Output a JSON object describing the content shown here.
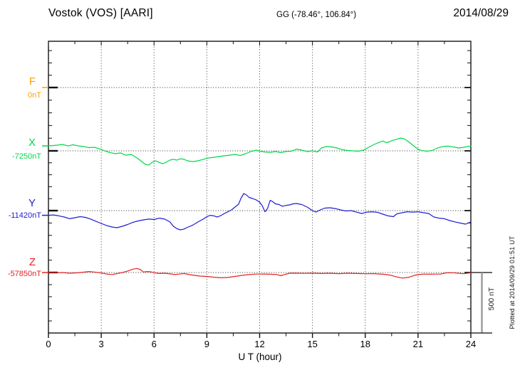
{
  "header": {
    "station": "Vostok (VOS)  [AARI]",
    "coords": "GG (-78.46°, 106.84°)",
    "date": "2014/08/29"
  },
  "side_note": "Plotted at 2014/09/29 01:51 UT",
  "scale_bar": {
    "label": "500 nT",
    "nT": 500
  },
  "xaxis": {
    "label": "U T (hour)",
    "ticks": [
      "0",
      "3",
      "6",
      "9",
      "12",
      "15",
      "18",
      "21",
      "24"
    ]
  },
  "components": [
    {
      "id": "F",
      "label": "F",
      "value_label": "0nT",
      "color": "#FFA000"
    },
    {
      "id": "X",
      "label": "X",
      "value_label": "-7250nT",
      "color": "#00D84A"
    },
    {
      "id": "Y",
      "label": "Y",
      "value_label": "-11420nT",
      "color": "#1D1DD2"
    },
    {
      "id": "Z",
      "label": "Z",
      "value_label": "-57850nT",
      "color": "#E42222"
    }
  ],
  "chart_data": {
    "type": "line",
    "title": "Vostok (VOS) [AARI] magnetogram, 2014/08/29",
    "xlabel": "U T (hour)",
    "xlim": [
      0,
      24
    ],
    "x_tick_step_hours": 3,
    "x_minor_tick_hours": 1.5,
    "y_division_nT": 500,
    "grid": "dotted",
    "legend_position": "left",
    "series": [
      {
        "name": "F",
        "baseline_nT": 0,
        "x": [
          0
        ],
        "dev_nT": [
          0
        ]
      },
      {
        "name": "X",
        "baseline_nT": -7250,
        "x": [
          0,
          0.5,
          0.8,
          1.1,
          1.4,
          1.7,
          2.0,
          2.3,
          2.6,
          2.9,
          3.2,
          3.5,
          3.8,
          4.1,
          4.4,
          4.7,
          4.9,
          5.1,
          5.3,
          5.5,
          5.7,
          5.9,
          6.1,
          6.3,
          6.5,
          6.7,
          6.9,
          7.1,
          7.3,
          7.5,
          7.7,
          7.9,
          8.2,
          8.5,
          8.8,
          9.1,
          9.4,
          9.7,
          10.0,
          10.3,
          10.6,
          10.9,
          11.2,
          11.5,
          11.8,
          12.0,
          12.3,
          12.6,
          12.9,
          13.2,
          13.5,
          13.8,
          14.1,
          14.4,
          14.7,
          15.0,
          15.3,
          15.5,
          15.8,
          16.1,
          16.4,
          16.7,
          17.0,
          17.3,
          17.6,
          17.9,
          18.2,
          18.5,
          18.8,
          19.0,
          19.2,
          19.4,
          19.6,
          19.8,
          20.0,
          20.2,
          20.4,
          20.6,
          20.8,
          21.0,
          21.2,
          21.5,
          21.8,
          22.1,
          22.4,
          22.7,
          23.0,
          23.3,
          23.6,
          23.8,
          24.0
        ],
        "dev_nT": [
          40,
          46,
          52,
          40,
          49,
          40,
          35,
          26,
          29,
          17,
          0,
          -14,
          -23,
          -17,
          -35,
          -29,
          -46,
          -64,
          -87,
          -110,
          -116,
          -92,
          -81,
          -95,
          -104,
          -92,
          -75,
          -69,
          -75,
          -64,
          -69,
          -81,
          -87,
          -81,
          -69,
          -58,
          -52,
          -46,
          -40,
          -35,
          -29,
          -38,
          -23,
          -6,
          6,
          -3,
          -9,
          -12,
          -6,
          -14,
          -6,
          -3,
          14,
          6,
          -6,
          0,
          -9,
          23,
          35,
          32,
          23,
          9,
          3,
          0,
          -3,
          6,
          29,
          52,
          69,
          81,
          66,
          75,
          87,
          95,
          104,
          98,
          81,
          58,
          35,
          14,
          3,
          -3,
          3,
          23,
          35,
          38,
          32,
          23,
          29,
          35,
          38
        ]
      },
      {
        "name": "Y",
        "baseline_nT": -11420,
        "x": [
          0,
          0.3,
          0.6,
          0.9,
          1.2,
          1.5,
          1.8,
          2.1,
          2.4,
          2.7,
          3.0,
          3.3,
          3.6,
          3.9,
          4.2,
          4.5,
          4.8,
          5.1,
          5.4,
          5.7,
          6.0,
          6.3,
          6.6,
          6.9,
          7.1,
          7.3,
          7.5,
          7.7,
          7.9,
          8.2,
          8.5,
          8.8,
          9.0,
          9.2,
          9.4,
          9.6,
          9.8,
          10.0,
          10.2,
          10.4,
          10.6,
          10.8,
          10.95,
          11.1,
          11.25,
          11.4,
          11.6,
          11.8,
          12.0,
          12.15,
          12.3,
          12.45,
          12.6,
          12.75,
          12.9,
          13.1,
          13.3,
          13.5,
          13.7,
          13.9,
          14.1,
          14.4,
          14.7,
          15.0,
          15.2,
          15.4,
          15.7,
          16.0,
          16.3,
          16.6,
          16.9,
          17.2,
          17.5,
          17.8,
          18.1,
          18.4,
          18.7,
          19.0,
          19.3,
          19.6,
          19.8,
          20.1,
          20.4,
          20.7,
          21.0,
          21.3,
          21.6,
          21.9,
          22.2,
          22.5,
          22.8,
          23.1,
          23.4,
          23.7,
          23.9,
          24.0
        ],
        "dev_nT": [
          -38,
          -35,
          -43,
          -52,
          -66,
          -58,
          -49,
          -55,
          -69,
          -87,
          -104,
          -121,
          -133,
          -139,
          -127,
          -113,
          -95,
          -84,
          -75,
          -69,
          -72,
          -61,
          -69,
          -92,
          -127,
          -147,
          -156,
          -150,
          -136,
          -118,
          -92,
          -69,
          -49,
          -38,
          -43,
          -52,
          -40,
          -23,
          -9,
          6,
          29,
          52,
          104,
          139,
          127,
          107,
          98,
          87,
          69,
          40,
          -9,
          17,
          84,
          72,
          55,
          49,
          35,
          43,
          46,
          55,
          58,
          49,
          29,
          0,
          -12,
          3,
          20,
          23,
          17,
          6,
          -3,
          0,
          -12,
          -23,
          -12,
          -9,
          -14,
          -29,
          -43,
          -49,
          -26,
          -17,
          -9,
          -12,
          -9,
          -17,
          -23,
          -52,
          -61,
          -66,
          -81,
          -92,
          -101,
          -110,
          -98,
          -90
        ]
      },
      {
        "name": "Z",
        "baseline_nT": -57850,
        "x": [
          0,
          0.4,
          0.8,
          1.2,
          1.6,
          2.0,
          2.3,
          2.6,
          3.0,
          3.3,
          3.6,
          3.9,
          4.2,
          4.5,
          4.8,
          5.0,
          5.2,
          5.4,
          5.6,
          5.8,
          6.0,
          6.3,
          6.6,
          7.0,
          7.2,
          7.4,
          7.7,
          8.0,
          8.3,
          8.6,
          9.0,
          9.4,
          9.8,
          10.2,
          10.6,
          11.0,
          11.4,
          11.8,
          12.2,
          12.6,
          13.0,
          13.2,
          13.4,
          13.7,
          14.0,
          14.5,
          15.0,
          15.5,
          16.0,
          16.5,
          17.0,
          17.5,
          18.0,
          18.5,
          19.0,
          19.4,
          19.8,
          20.1,
          20.45,
          20.85,
          21.3,
          21.7,
          22.0,
          22.3,
          22.6,
          23.0,
          23.3,
          23.6,
          24.0
        ],
        "dev_nT": [
          0,
          -3,
          0,
          -6,
          -3,
          3,
          8,
          4,
          -3,
          -12,
          -16,
          -9,
          0,
          12,
          27,
          33,
          26,
          4,
          8,
          6,
          -2,
          -8,
          -6,
          -12,
          -17,
          -13,
          -8,
          -17,
          -23,
          -29,
          -32,
          -38,
          -43,
          -40,
          -32,
          -23,
          -17,
          -13,
          -12,
          -14,
          -17,
          -26,
          -17,
          -6,
          -5,
          -7,
          -5,
          -8,
          -6,
          -9,
          -6,
          -8,
          -10,
          -9,
          -14,
          -21,
          -36,
          -45,
          -40,
          -21,
          -13,
          -14,
          -13,
          -12,
          -3,
          -2,
          -6,
          -10,
          -2
        ]
      }
    ]
  }
}
